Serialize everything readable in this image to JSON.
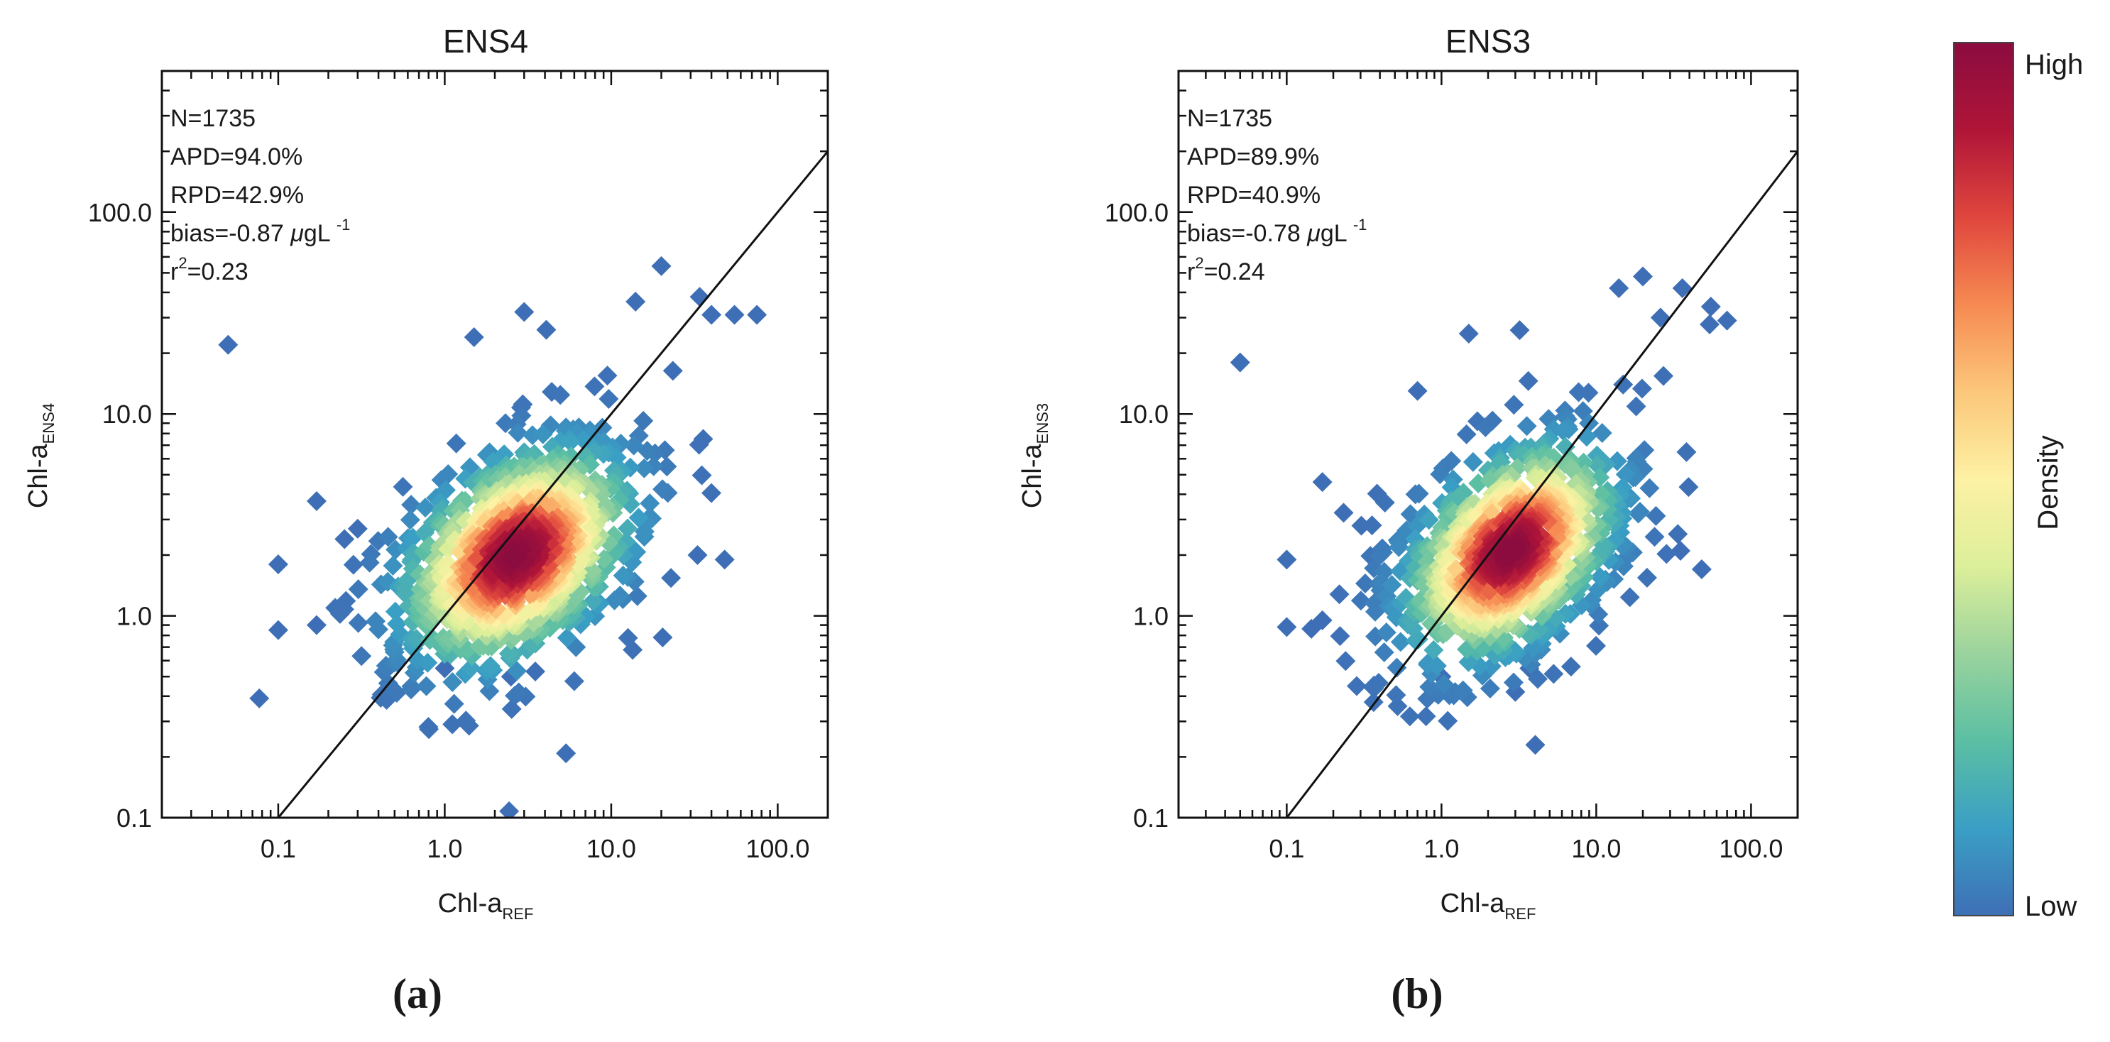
{
  "chart_data": [
    {
      "type": "scatter",
      "panel": "a",
      "panel_label": "(a)",
      "title": "ENS4",
      "xlabel": "Chl-a",
      "xlabel_sub": "REF",
      "ylabel": "Chl-a",
      "ylabel_sub": "ENS4",
      "xscale": "log",
      "yscale": "log",
      "xlim": [
        0.02,
        200
      ],
      "ylim": [
        0.1,
        500
      ],
      "xticks": [
        0.1,
        1,
        10,
        100
      ],
      "xtick_labels": [
        "0.1",
        "1.0",
        "10.0",
        "100.0"
      ],
      "yticks": [
        0.1,
        1,
        10,
        100
      ],
      "ytick_labels": [
        "0.1",
        "1.0",
        "10.0",
        "100.0"
      ],
      "one_to_one_line": true,
      "stats": {
        "n": "N=1735",
        "apd": "APD=94.0%",
        "rpd": "RPD=42.9%",
        "bias": "bias=-0.87",
        "bias_mu": "μ",
        "bias_unit": "gL",
        "bias_exp": "-1",
        "r2_base": "r",
        "r2_exp": "2",
        "r2_value": "=0.23"
      },
      "cluster": {
        "center_x": 2.7,
        "center_y": 2.0,
        "slope": 0.55,
        "spread_major": 0.42,
        "spread_minor": 0.26,
        "count": 1735
      },
      "outliers": [
        [
          0.05,
          22
        ],
        [
          0.1,
          1.8
        ],
        [
          0.1,
          0.85
        ],
        [
          0.17,
          0.9
        ],
        [
          0.17,
          3.7
        ],
        [
          0.25,
          2.4
        ],
        [
          0.3,
          2.7
        ],
        [
          20,
          54
        ],
        [
          34,
          38
        ],
        [
          40,
          31
        ],
        [
          55,
          31
        ],
        [
          75,
          31
        ],
        [
          48,
          1.9
        ],
        [
          33,
          2.0
        ],
        [
          1.0,
          0.55
        ],
        [
          2.5,
          0.5
        ],
        [
          3.5,
          0.53
        ],
        [
          1.5,
          24
        ],
        [
          3.0,
          32
        ],
        [
          14,
          36
        ]
      ]
    },
    {
      "type": "scatter",
      "panel": "b",
      "panel_label": "(b)",
      "title": "ENS3",
      "xlabel": "Chl-a",
      "xlabel_sub": "REF",
      "ylabel": "Chl-a",
      "ylabel_sub": "ENS3",
      "xscale": "log",
      "yscale": "log",
      "xlim": [
        0.02,
        200
      ],
      "ylim": [
        0.1,
        500
      ],
      "xticks": [
        0.1,
        1,
        10,
        100
      ],
      "xtick_labels": [
        "0.1",
        "1.0",
        "10.0",
        "100.0"
      ],
      "yticks": [
        0.1,
        1,
        10,
        100
      ],
      "ytick_labels": [
        "0.1",
        "1.0",
        "10.0",
        "100.0"
      ],
      "one_to_one_line": true,
      "stats": {
        "n": "N=1735",
        "apd": "APD=89.9%",
        "rpd": "RPD=40.9%",
        "bias": "bias=-0.78",
        "bias_mu": "μ",
        "bias_unit": "gL",
        "bias_exp": "-1",
        "r2_base": "r",
        "r2_exp": "2",
        "r2_value": "=0.24"
      },
      "cluster": {
        "center_x": 2.8,
        "center_y": 2.1,
        "slope": 0.58,
        "spread_major": 0.42,
        "spread_minor": 0.25,
        "count": 1735
      },
      "outliers": [
        [
          0.05,
          18
        ],
        [
          0.1,
          1.9
        ],
        [
          0.1,
          0.88
        ],
        [
          0.17,
          0.95
        ],
        [
          0.17,
          4.6
        ],
        [
          0.7,
          13
        ],
        [
          20,
          48
        ],
        [
          36,
          42
        ],
        [
          55,
          34
        ],
        [
          70,
          29
        ],
        [
          48,
          1.7
        ],
        [
          35,
          2.1
        ],
        [
          1.0,
          0.5
        ],
        [
          3.0,
          0.42
        ],
        [
          3.7,
          0.55
        ],
        [
          1.5,
          25
        ],
        [
          3.2,
          26
        ],
        [
          14,
          42
        ],
        [
          26,
          30
        ]
      ]
    }
  ],
  "colorbar": {
    "label": "Density",
    "high_label": "High",
    "low_label": "Low",
    "colors": [
      "#3e6fb6",
      "#3a9fc4",
      "#5bbfa3",
      "#9ad39d",
      "#dcef9a",
      "#fdf1a4",
      "#fcc77a",
      "#f68a52",
      "#e0463d",
      "#b01538",
      "#8b0c3f"
    ]
  }
}
